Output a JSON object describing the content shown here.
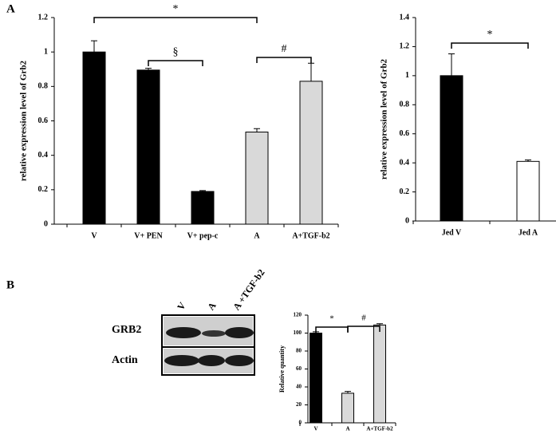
{
  "panel_labels": [
    "A",
    "B"
  ],
  "blot": {
    "lanes": [
      "V",
      "A",
      "A +TGF-b2"
    ],
    "rows": [
      "GRB2",
      "Actin"
    ]
  },
  "chart_data": [
    {
      "type": "bar",
      "ylabel": "relative expression level of Grb2",
      "categories": [
        "V",
        "V+ PEN",
        "V+ pep-c",
        "A",
        "A+TGF-b2"
      ],
      "values": [
        1.0,
        0.895,
        0.19,
        0.535,
        0.83
      ],
      "errors": [
        0.065,
        0.01,
        0.005,
        0.02,
        0.105
      ],
      "colors": [
        "#000000",
        "#000000",
        "#000000",
        "#d9d9d9",
        "#d9d9d9"
      ],
      "ylim": [
        0,
        1.2
      ],
      "yticks": [
        0,
        0.2,
        0.4,
        0.6,
        0.8,
        1,
        1.2
      ],
      "annotations": [
        {
          "text": "*",
          "between": [
            "V",
            "A"
          ]
        },
        {
          "text": "§",
          "between": [
            "V+ PEN",
            "V+ pep-c"
          ]
        },
        {
          "text": "#",
          "between": [
            "A",
            "A+TGF-b2"
          ]
        }
      ]
    },
    {
      "type": "bar",
      "ylabel": "relative expression level of Grb2",
      "categories": [
        "Jed V",
        "Jed A"
      ],
      "values": [
        1.0,
        0.41
      ],
      "errors": [
        0.15,
        0.01
      ],
      "colors": [
        "#000000",
        "#ffffff"
      ],
      "ylim": [
        0,
        1.4
      ],
      "yticks": [
        0,
        0.2,
        0.4,
        0.6,
        0.8,
        1,
        1.2,
        1.4
      ],
      "annotations": [
        {
          "text": "*",
          "between": [
            "Jed V",
            "Jed A"
          ]
        }
      ]
    },
    {
      "type": "bar",
      "ylabel": "Relative quantity",
      "categories": [
        "V",
        "A",
        "A+TGF-b2"
      ],
      "values": [
        100,
        33,
        109
      ],
      "errors": [
        1.5,
        2,
        1.5
      ],
      "colors": [
        "#000000",
        "#d9d9d9",
        "#d9d9d9"
      ],
      "ylim": [
        0,
        120
      ],
      "yticks": [
        0,
        20,
        40,
        60,
        80,
        100,
        120
      ],
      "annotations": [
        {
          "text": "*",
          "between": [
            "V",
            "A"
          ]
        },
        {
          "text": "#",
          "between": [
            "A",
            "A+TGF-b2"
          ]
        }
      ]
    }
  ]
}
